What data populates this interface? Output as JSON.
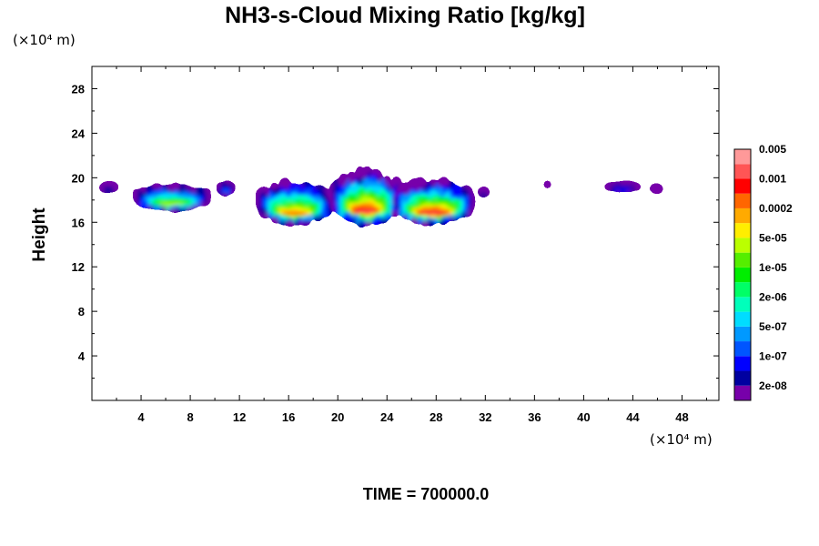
{
  "chart_data": {
    "type": "heatmap",
    "title": "NH3-s-Cloud Mixing Ratio [kg/kg]",
    "ylabel": "Height",
    "x_unit": "(×10⁴ m)",
    "y_unit": "(×10⁴ m)",
    "xlim": [
      0,
      51
    ],
    "ylim": [
      0,
      30
    ],
    "x_ticks": [
      4,
      8,
      12,
      16,
      20,
      24,
      28,
      32,
      36,
      40,
      44,
      48
    ],
    "y_ticks": [
      4,
      8,
      12,
      16,
      20,
      24,
      28
    ],
    "colorbar": {
      "colors": [
        "#7700aa",
        "#0000a0",
        "#0000ff",
        "#0055ff",
        "#0099ff",
        "#00ddff",
        "#00ffbb",
        "#00ff66",
        "#00ee00",
        "#55ee00",
        "#bbff00",
        "#ffee00",
        "#ffaa00",
        "#ff6600",
        "#ff0000",
        "#ff5555",
        "#ff9999"
      ],
      "labels": [
        "2e-08",
        "1e-07",
        "5e-07",
        "2e-06",
        "1e-05",
        "5e-05",
        "0.0002",
        "0.001",
        "0.005"
      ]
    },
    "cloud_regions": [
      {
        "x": [
          0.7,
          2.0
        ],
        "y": [
          18.8,
          19.5
        ],
        "max_level": 1
      },
      {
        "x": [
          3.5,
          9.5
        ],
        "y": [
          17.3,
          19.2
        ],
        "max_level": 10
      },
      {
        "x": [
          10.3,
          11.5
        ],
        "y": [
          18.6,
          19.6
        ],
        "max_level": 3
      },
      {
        "x": [
          13.5,
          19.5
        ],
        "y": [
          16.2,
          19.4
        ],
        "max_level": 13
      },
      {
        "x": [
          19.5,
          25.0
        ],
        "y": [
          16.2,
          20.4
        ],
        "max_level": 15
      },
      {
        "x": [
          24.5,
          31.0
        ],
        "y": [
          16.2,
          19.5
        ],
        "max_level": 15
      },
      {
        "x": [
          31.5,
          32.2
        ],
        "y": [
          18.4,
          19.0
        ],
        "max_level": 1
      },
      {
        "x": [
          36.9,
          37.2
        ],
        "y": [
          19.2,
          19.6
        ],
        "max_level": 0
      },
      {
        "x": [
          41.8,
          44.5
        ],
        "y": [
          18.9,
          19.5
        ],
        "max_level": 2
      },
      {
        "x": [
          45.5,
          46.3
        ],
        "y": [
          18.7,
          19.3
        ],
        "max_level": 0
      }
    ]
  },
  "time_label": "TIME = 700000.0"
}
